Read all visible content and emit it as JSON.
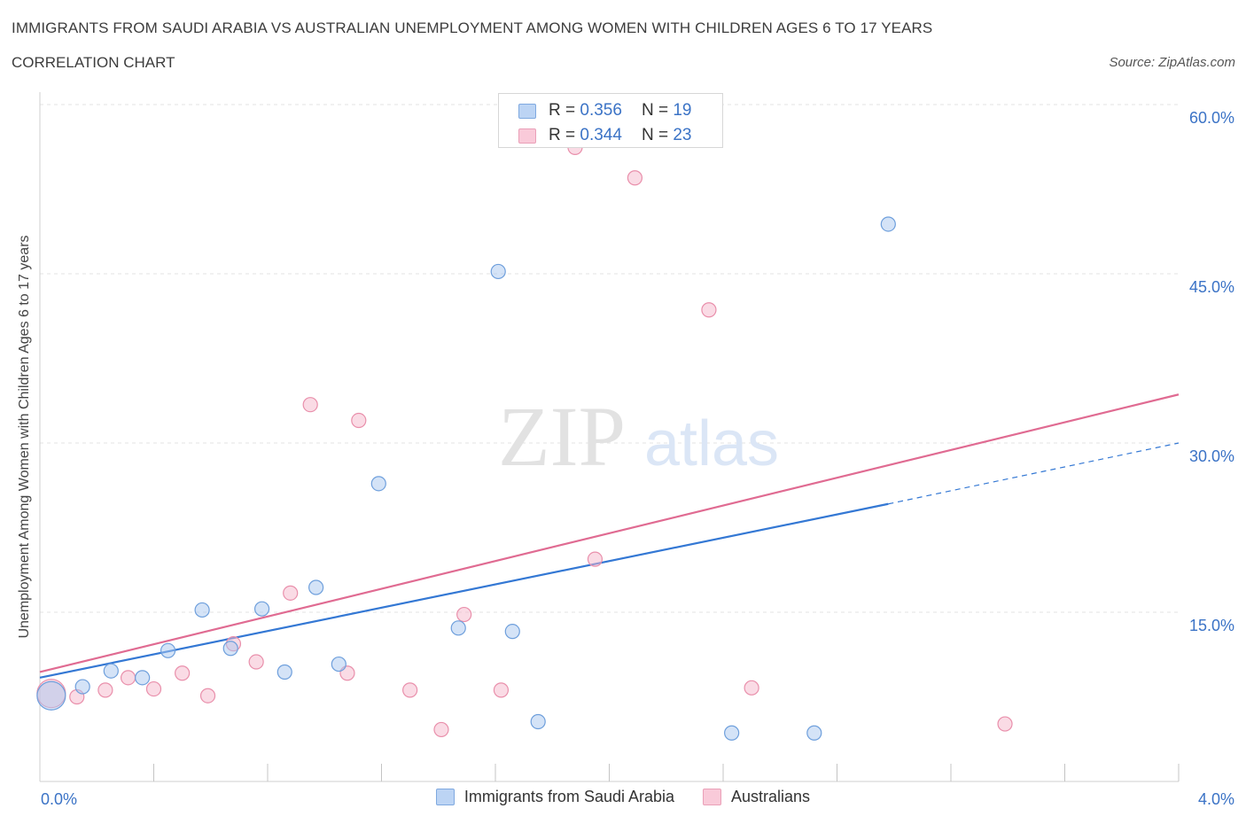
{
  "header": {
    "title": "IMMIGRANTS FROM SAUDI ARABIA VS AUSTRALIAN UNEMPLOYMENT AMONG WOMEN WITH CHILDREN AGES 6 TO 17 YEARS",
    "subtitle": "CORRELATION CHART",
    "source": "Source: ZipAtlas.com"
  },
  "watermark": {
    "zip": "ZIP",
    "atlas": "atlas"
  },
  "legend": {
    "r_label": "R =",
    "n_label": "N =",
    "rows": [
      {
        "r": "0.356",
        "n": "19",
        "color": "#aac8f0"
      },
      {
        "r": "0.344",
        "n": "23",
        "color": "#f5b8cc"
      }
    ]
  },
  "chart_data": {
    "type": "scatter",
    "title": "IMMIGRANTS FROM SAUDI ARABIA VS AUSTRALIAN UNEMPLOYMENT AMONG WOMEN WITH CHILDREN AGES 6 TO 17 YEARS",
    "xlabel": "",
    "ylabel": "Unemployment Among Women with Children Ages 6 to 17 years",
    "xlim": [
      0,
      4.0
    ],
    "ylim": [
      0,
      60
    ],
    "x_tick_labels": [
      "0.0%",
      "4.0%"
    ],
    "y_ticks": [
      15,
      30,
      45,
      60
    ],
    "y_tick_labels": [
      "15.0%",
      "30.0%",
      "45.0%",
      "60.0%"
    ],
    "grid": "horizontal dashed",
    "legend_position": "top-center",
    "series": [
      {
        "name": "Immigrants from Saudi Arabia",
        "color": "#aac8f0",
        "stroke": "#6e9fdc",
        "line_color": "#3478d4",
        "points": [
          {
            "x": 0.04,
            "y": 7.6,
            "big": true
          },
          {
            "x": 0.15,
            "y": 8.4
          },
          {
            "x": 0.25,
            "y": 9.8
          },
          {
            "x": 0.36,
            "y": 9.2
          },
          {
            "x": 0.45,
            "y": 11.6
          },
          {
            "x": 0.57,
            "y": 15.2
          },
          {
            "x": 0.67,
            "y": 11.8
          },
          {
            "x": 0.78,
            "y": 15.3
          },
          {
            "x": 0.86,
            "y": 9.7
          },
          {
            "x": 0.97,
            "y": 17.2
          },
          {
            "x": 1.05,
            "y": 10.4
          },
          {
            "x": 1.19,
            "y": 26.4
          },
          {
            "x": 1.47,
            "y": 13.6
          },
          {
            "x": 1.61,
            "y": 45.2
          },
          {
            "x": 1.66,
            "y": 13.3
          },
          {
            "x": 1.75,
            "y": 5.3
          },
          {
            "x": 2.43,
            "y": 4.3
          },
          {
            "x": 2.72,
            "y": 4.3
          },
          {
            "x": 2.98,
            "y": 49.4
          }
        ],
        "trend": {
          "x0": 0,
          "y0": 9.2,
          "x1": 2.98,
          "y1": 24.6,
          "dash_x1": 4.0,
          "dash_y1": 30.0
        }
      },
      {
        "name": "Australians",
        "color": "#f5b8cc",
        "stroke": "#e98fab",
        "line_color": "#e06b92",
        "points": [
          {
            "x": 0.04,
            "y": 7.8,
            "big": true
          },
          {
            "x": 0.13,
            "y": 7.5
          },
          {
            "x": 0.23,
            "y": 8.1
          },
          {
            "x": 0.31,
            "y": 9.2
          },
          {
            "x": 0.4,
            "y": 8.2
          },
          {
            "x": 0.5,
            "y": 9.6
          },
          {
            "x": 0.59,
            "y": 7.6
          },
          {
            "x": 0.68,
            "y": 12.2
          },
          {
            "x": 0.76,
            "y": 10.6
          },
          {
            "x": 0.88,
            "y": 16.7
          },
          {
            "x": 0.95,
            "y": 33.4
          },
          {
            "x": 1.08,
            "y": 9.6
          },
          {
            "x": 1.12,
            "y": 32.0
          },
          {
            "x": 1.3,
            "y": 8.1
          },
          {
            "x": 1.41,
            "y": 4.6
          },
          {
            "x": 1.49,
            "y": 14.8
          },
          {
            "x": 1.62,
            "y": 8.1
          },
          {
            "x": 1.88,
            "y": 56.2
          },
          {
            "x": 1.95,
            "y": 19.7
          },
          {
            "x": 2.09,
            "y": 53.5
          },
          {
            "x": 2.35,
            "y": 41.8
          },
          {
            "x": 2.5,
            "y": 8.3
          },
          {
            "x": 3.39,
            "y": 5.1
          }
        ],
        "trend": {
          "x0": 0,
          "y0": 9.7,
          "x1": 4.0,
          "y1": 34.3
        }
      }
    ]
  }
}
